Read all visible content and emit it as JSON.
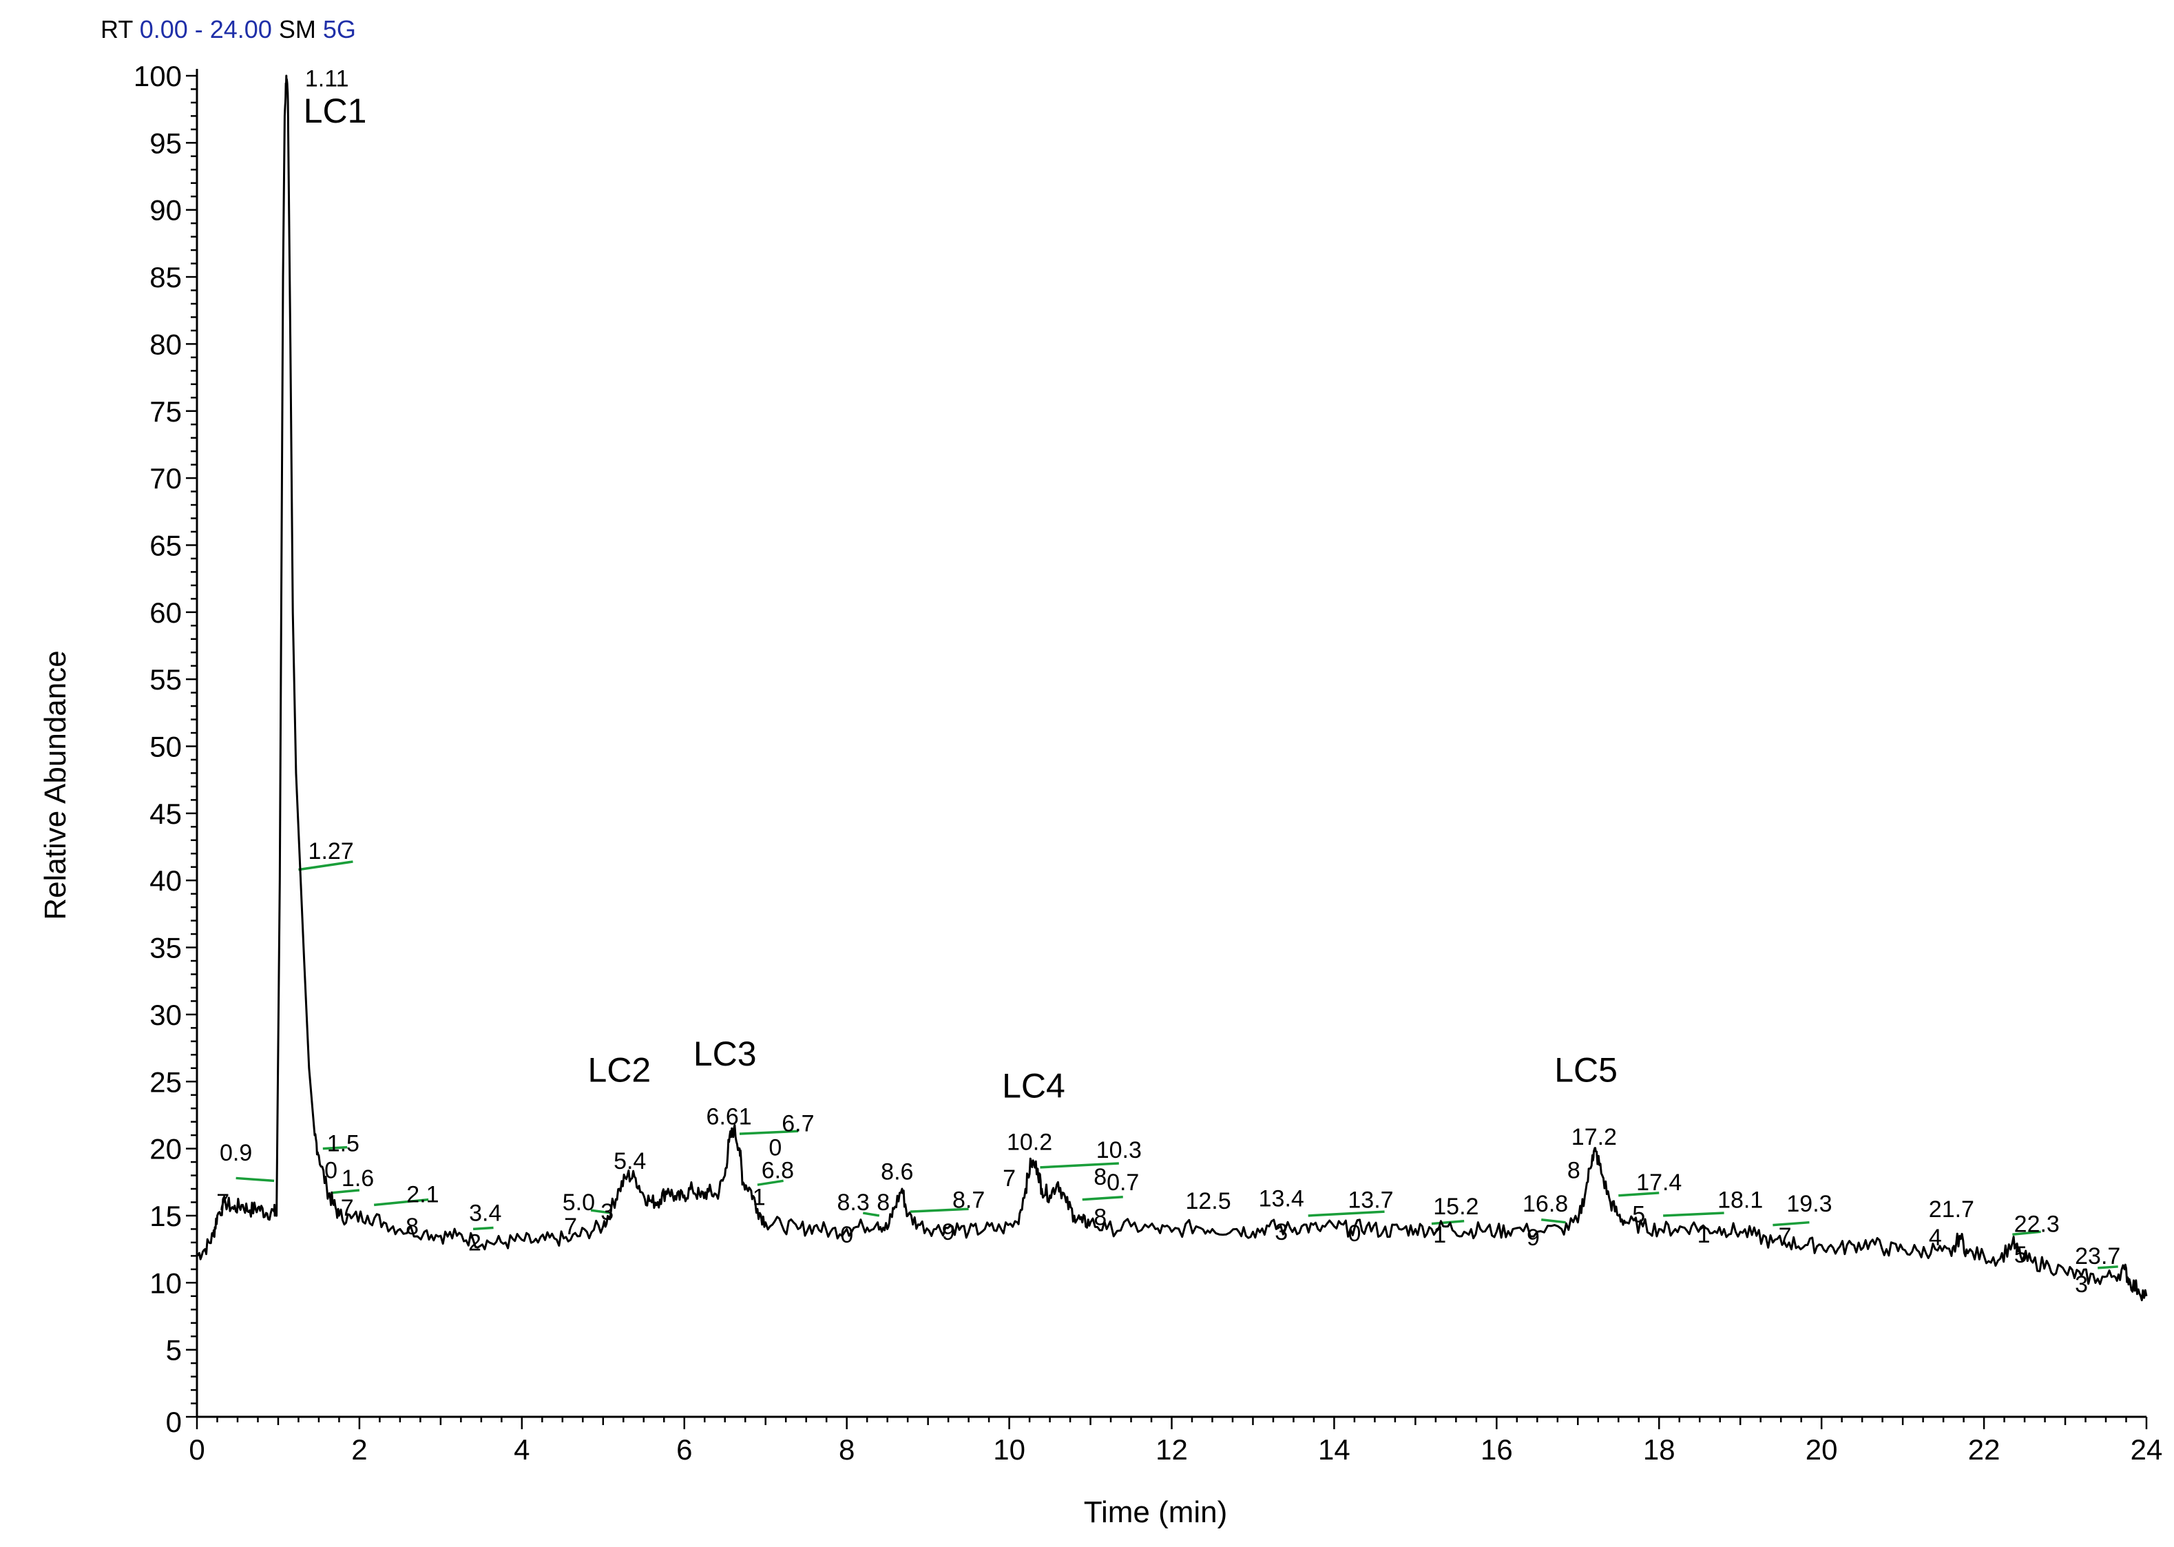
{
  "header": {
    "rt_label": "RT",
    "rt_range": "0.00 - 24.00",
    "sm_label": "SM",
    "sm_value": "5G",
    "label_color": "#000000",
    "value_color": "#1f2fa8"
  },
  "chart_data": {
    "type": "line",
    "title": "",
    "xlabel": "Time (min)",
    "ylabel": "Relative Abundance",
    "xlim": [
      0,
      24
    ],
    "ylim": [
      0,
      100
    ],
    "x_ticks": [
      0,
      2,
      4,
      6,
      8,
      10,
      12,
      14,
      16,
      18,
      20,
      22,
      24
    ],
    "y_ticks": [
      0,
      5,
      10,
      15,
      20,
      25,
      30,
      35,
      40,
      45,
      50,
      55,
      60,
      65,
      70,
      75,
      80,
      85,
      90,
      95,
      100
    ],
    "grid": false,
    "legend": "none",
    "line_color": "#000000",
    "baseline_color": "#1a9e3a",
    "series": [
      {
        "points": [
          [
            0.0,
            12.0
          ],
          [
            0.1,
            12.5
          ],
          [
            0.2,
            13.5
          ],
          [
            0.25,
            15.0
          ],
          [
            0.35,
            16.0
          ],
          [
            0.45,
            15.5
          ],
          [
            0.55,
            15.8
          ],
          [
            0.65,
            15.4
          ],
          [
            0.75,
            15.6
          ],
          [
            0.85,
            15.2
          ],
          [
            0.95,
            15.3
          ],
          [
            0.98,
            15.0
          ],
          [
            1.02,
            40.0
          ],
          [
            1.06,
            85.0
          ],
          [
            1.08,
            97.0
          ],
          [
            1.1,
            100.0
          ],
          [
            1.12,
            98.0
          ],
          [
            1.15,
            80.0
          ],
          [
            1.18,
            60.0
          ],
          [
            1.22,
            48.0
          ],
          [
            1.27,
            41.0
          ],
          [
            1.32,
            34.0
          ],
          [
            1.38,
            26.0
          ],
          [
            1.45,
            21.0
          ],
          [
            1.5,
            19.5
          ],
          [
            1.6,
            17.0
          ],
          [
            1.67,
            16.0
          ],
          [
            1.75,
            15.0
          ],
          [
            1.9,
            14.8
          ],
          [
            2.1,
            15.0
          ],
          [
            2.3,
            14.5
          ],
          [
            2.5,
            14.0
          ],
          [
            2.8,
            13.8
          ],
          [
            3.0,
            13.5
          ],
          [
            3.2,
            13.5
          ],
          [
            3.4,
            13.2
          ],
          [
            3.6,
            13.0
          ],
          [
            3.8,
            13.0
          ],
          [
            4.0,
            13.2
          ],
          [
            4.2,
            13.0
          ],
          [
            4.4,
            13.3
          ],
          [
            4.6,
            13.2
          ],
          [
            4.8,
            13.8
          ],
          [
            5.0,
            14.2
          ],
          [
            5.1,
            15.5
          ],
          [
            5.2,
            17.0
          ],
          [
            5.3,
            18.0
          ],
          [
            5.4,
            17.8
          ],
          [
            5.5,
            16.5
          ],
          [
            5.6,
            16.0
          ],
          [
            5.7,
            16.2
          ],
          [
            5.8,
            17.0
          ],
          [
            5.9,
            16.2
          ],
          [
            6.0,
            16.5
          ],
          [
            6.1,
            17.0
          ],
          [
            6.2,
            16.4
          ],
          [
            6.3,
            16.8
          ],
          [
            6.4,
            16.5
          ],
          [
            6.5,
            18.0
          ],
          [
            6.55,
            20.5
          ],
          [
            6.61,
            21.5
          ],
          [
            6.68,
            20.0
          ],
          [
            6.72,
            17.5
          ],
          [
            6.81,
            17.0
          ],
          [
            6.9,
            15.5
          ],
          [
            7.0,
            14.5
          ],
          [
            7.2,
            14.3
          ],
          [
            7.4,
            14.0
          ],
          [
            7.6,
            14.2
          ],
          [
            7.8,
            13.8
          ],
          [
            8.0,
            14.0
          ],
          [
            8.2,
            14.2
          ],
          [
            8.38,
            14.5
          ],
          [
            8.5,
            14.0
          ],
          [
            8.58,
            15.5
          ],
          [
            8.68,
            17.0
          ],
          [
            8.75,
            15.0
          ],
          [
            8.9,
            14.3
          ],
          [
            9.1,
            14.0
          ],
          [
            9.3,
            14.2
          ],
          [
            9.5,
            13.8
          ],
          [
            9.7,
            14.0
          ],
          [
            9.9,
            14.0
          ],
          [
            10.1,
            14.5
          ],
          [
            10.2,
            17.0
          ],
          [
            10.27,
            19.0
          ],
          [
            10.35,
            18.5
          ],
          [
            10.4,
            17.0
          ],
          [
            10.5,
            16.5
          ],
          [
            10.6,
            17.5
          ],
          [
            10.7,
            16.0
          ],
          [
            10.8,
            15.0
          ],
          [
            10.9,
            14.5
          ],
          [
            11.0,
            14.5
          ],
          [
            11.2,
            14.0
          ],
          [
            11.5,
            14.2
          ],
          [
            11.8,
            14.0
          ],
          [
            12.0,
            13.8
          ],
          [
            12.3,
            14.2
          ],
          [
            12.5,
            14.0
          ],
          [
            12.8,
            14.0
          ],
          [
            13.0,
            13.8
          ],
          [
            13.2,
            14.2
          ],
          [
            13.4,
            14.0
          ],
          [
            13.6,
            14.2
          ],
          [
            13.8,
            14.0
          ],
          [
            14.0,
            14.2
          ],
          [
            14.2,
            14.0
          ],
          [
            14.4,
            14.2
          ],
          [
            14.6,
            13.8
          ],
          [
            14.8,
            14.0
          ],
          [
            15.0,
            14.0
          ],
          [
            15.2,
            14.0
          ],
          [
            15.4,
            14.2
          ],
          [
            15.6,
            13.8
          ],
          [
            15.8,
            14.0
          ],
          [
            16.0,
            13.8
          ],
          [
            16.2,
            14.0
          ],
          [
            16.5,
            13.8
          ],
          [
            16.8,
            14.0
          ],
          [
            17.0,
            14.5
          ],
          [
            17.1,
            17.0
          ],
          [
            17.18,
            19.5
          ],
          [
            17.22,
            19.8
          ],
          [
            17.3,
            18.0
          ],
          [
            17.4,
            16.0
          ],
          [
            17.5,
            15.0
          ],
          [
            17.6,
            14.5
          ],
          [
            17.8,
            14.2
          ],
          [
            18.0,
            14.0
          ],
          [
            18.2,
            14.0
          ],
          [
            18.4,
            14.2
          ],
          [
            18.6,
            14.0
          ],
          [
            18.8,
            14.0
          ],
          [
            19.0,
            13.8
          ],
          [
            19.2,
            13.5
          ],
          [
            19.4,
            13.0
          ],
          [
            19.6,
            13.0
          ],
          [
            19.8,
            12.8
          ],
          [
            20.0,
            12.8
          ],
          [
            20.2,
            12.5
          ],
          [
            20.4,
            12.8
          ],
          [
            20.6,
            13.0
          ],
          [
            20.8,
            12.5
          ],
          [
            21.0,
            12.5
          ],
          [
            21.2,
            12.3
          ],
          [
            21.4,
            12.5
          ],
          [
            21.6,
            12.0
          ],
          [
            21.7,
            13.5
          ],
          [
            21.8,
            12.2
          ],
          [
            22.0,
            12.0
          ],
          [
            22.2,
            11.8
          ],
          [
            22.35,
            13.0
          ],
          [
            22.45,
            12.0
          ],
          [
            22.6,
            11.5
          ],
          [
            22.8,
            11.3
          ],
          [
            23.0,
            10.8
          ],
          [
            23.2,
            10.5
          ],
          [
            23.4,
            10.3
          ],
          [
            23.6,
            10.5
          ],
          [
            23.73,
            11.0
          ],
          [
            23.8,
            10.0
          ],
          [
            23.9,
            9.5
          ],
          [
            24.0,
            9.0
          ]
        ]
      }
    ],
    "peak_labels": [
      {
        "text": "LC1",
        "x": 1.7,
        "y": 96.5
      },
      {
        "text": "LC2",
        "x": 5.2,
        "y": 25.0
      },
      {
        "text": "LC3",
        "x": 6.5,
        "y": 26.2
      },
      {
        "text": "LC4",
        "x": 10.3,
        "y": 23.8
      },
      {
        "text": "LC5",
        "x": 17.1,
        "y": 25.0
      }
    ],
    "annotations": [
      {
        "text": "1.11",
        "x": 1.6,
        "y": 99.2
      },
      {
        "text": "1.27",
        "x": 1.65,
        "y": 41.6
      },
      {
        "text": "0.9",
        "x": 0.48,
        "y": 19.1
      },
      {
        "text": "7",
        "x": 0.32,
        "y": 15.4
      },
      {
        "text": "1.5",
        "x": 1.8,
        "y": 19.8
      },
      {
        "text": "0",
        "x": 1.65,
        "y": 17.8
      },
      {
        "text": "1.6",
        "x": 1.98,
        "y": 17.2
      },
      {
        "text": "7",
        "x": 1.85,
        "y": 15.0
      },
      {
        "text": "2.1",
        "x": 2.78,
        "y": 16.0
      },
      {
        "text": "8",
        "x": 2.65,
        "y": 13.6
      },
      {
        "text": "3.4",
        "x": 3.55,
        "y": 14.6
      },
      {
        "text": "2",
        "x": 3.42,
        "y": 12.4
      },
      {
        "text": "5.0",
        "x": 4.7,
        "y": 15.4
      },
      {
        "text": "7",
        "x": 4.6,
        "y": 13.6
      },
      {
        "text": "3",
        "x": 5.05,
        "y": 14.7
      },
      {
        "text": "5.4",
        "x": 5.33,
        "y": 18.5
      },
      {
        "text": "6.61",
        "x": 6.55,
        "y": 21.8
      },
      {
        "text": "6.7",
        "x": 7.4,
        "y": 21.3
      },
      {
        "text": "0",
        "x": 7.12,
        "y": 19.5
      },
      {
        "text": "6.8",
        "x": 7.15,
        "y": 17.8
      },
      {
        "text": "1",
        "x": 6.92,
        "y": 15.8
      },
      {
        "text": "8.3",
        "x": 8.08,
        "y": 15.4
      },
      {
        "text": "8",
        "x": 8.45,
        "y": 15.4
      },
      {
        "text": "0",
        "x": 8.0,
        "y": 13.0
      },
      {
        "text": "8.6",
        "x": 8.62,
        "y": 17.7
      },
      {
        "text": "8.7",
        "x": 9.5,
        "y": 15.6
      },
      {
        "text": "9",
        "x": 9.25,
        "y": 13.2
      },
      {
        "text": "10.2",
        "x": 10.25,
        "y": 19.9
      },
      {
        "text": "7",
        "x": 10.0,
        "y": 17.2
      },
      {
        "text": "10.3",
        "x": 11.35,
        "y": 19.3
      },
      {
        "text": "8",
        "x": 11.12,
        "y": 17.3
      },
      {
        "text": "0.7",
        "x": 11.4,
        "y": 16.9
      },
      {
        "text": "8",
        "x": 11.12,
        "y": 14.3
      },
      {
        "text": "12.5",
        "x": 12.45,
        "y": 15.5
      },
      {
        "text": "13.4",
        "x": 13.35,
        "y": 15.7
      },
      {
        "text": "3",
        "x": 13.35,
        "y": 13.2
      },
      {
        "text": "13.7",
        "x": 14.45,
        "y": 15.6
      },
      {
        "text": "0",
        "x": 14.25,
        "y": 13.1
      },
      {
        "text": "15.2",
        "x": 15.5,
        "y": 15.1
      },
      {
        "text": "1",
        "x": 15.3,
        "y": 13.0
      },
      {
        "text": "16.8",
        "x": 16.6,
        "y": 15.3
      },
      {
        "text": "9",
        "x": 16.45,
        "y": 12.8
      },
      {
        "text": "17.2",
        "x": 17.2,
        "y": 20.3
      },
      {
        "text": "8",
        "x": 16.95,
        "y": 17.8
      },
      {
        "text": "17.4",
        "x": 18.0,
        "y": 16.9
      },
      {
        "text": "5",
        "x": 17.75,
        "y": 14.5
      },
      {
        "text": "18.1",
        "x": 19.0,
        "y": 15.6
      },
      {
        "text": "1",
        "x": 18.55,
        "y": 13.0
      },
      {
        "text": "19.3",
        "x": 19.85,
        "y": 15.3
      },
      {
        "text": "7",
        "x": 19.55,
        "y": 12.9
      },
      {
        "text": "21.7",
        "x": 21.6,
        "y": 14.9
      },
      {
        "text": "4",
        "x": 21.4,
        "y": 12.8
      },
      {
        "text": "22.3",
        "x": 22.65,
        "y": 13.8
      },
      {
        "text": "5",
        "x": 22.45,
        "y": 11.5
      },
      {
        "text": "23.7",
        "x": 23.4,
        "y": 11.4
      },
      {
        "text": "3",
        "x": 23.2,
        "y": 9.3
      }
    ],
    "baseline_segments": [
      [
        [
          0.48,
          17.8
        ],
        [
          0.95,
          17.6
        ]
      ],
      [
        [
          1.25,
          40.8
        ],
        [
          1.92,
          41.4
        ]
      ],
      [
        [
          1.55,
          20.0
        ],
        [
          1.85,
          20.1
        ]
      ],
      [
        [
          1.65,
          16.7
        ],
        [
          2.0,
          16.9
        ]
      ],
      [
        [
          2.18,
          15.8
        ],
        [
          2.85,
          16.2
        ]
      ],
      [
        [
          3.4,
          14.0
        ],
        [
          3.65,
          14.1
        ]
      ],
      [
        [
          4.85,
          15.4
        ],
        [
          5.1,
          15.2
        ]
      ],
      [
        [
          6.68,
          21.1
        ],
        [
          7.4,
          21.3
        ]
      ],
      [
        [
          6.9,
          17.3
        ],
        [
          7.22,
          17.6
        ]
      ],
      [
        [
          8.2,
          15.2
        ],
        [
          8.4,
          15.0
        ]
      ],
      [
        [
          8.78,
          15.3
        ],
        [
          9.5,
          15.5
        ]
      ],
      [
        [
          10.38,
          18.6
        ],
        [
          11.35,
          18.9
        ]
      ],
      [
        [
          10.9,
          16.2
        ],
        [
          11.4,
          16.4
        ]
      ],
      [
        [
          13.68,
          15.0
        ],
        [
          14.62,
          15.3
        ]
      ],
      [
        [
          15.2,
          14.4
        ],
        [
          15.6,
          14.6
        ]
      ],
      [
        [
          16.55,
          14.7
        ],
        [
          16.85,
          14.5
        ]
      ],
      [
        [
          17.5,
          16.5
        ],
        [
          18.0,
          16.7
        ]
      ],
      [
        [
          18.05,
          15.0
        ],
        [
          18.8,
          15.2
        ]
      ],
      [
        [
          19.4,
          14.3
        ],
        [
          19.85,
          14.5
        ]
      ],
      [
        [
          22.35,
          13.6
        ],
        [
          22.7,
          13.8
        ]
      ],
      [
        [
          23.4,
          11.1
        ],
        [
          23.65,
          11.2
        ]
      ]
    ]
  }
}
